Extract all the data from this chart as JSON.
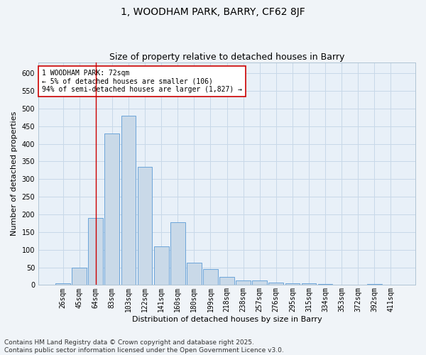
{
  "title": "1, WOODHAM PARK, BARRY, CF62 8JF",
  "subtitle": "Size of property relative to detached houses in Barry",
  "xlabel": "Distribution of detached houses by size in Barry",
  "ylabel": "Number of detached properties",
  "categories": [
    "26sqm",
    "45sqm",
    "64sqm",
    "83sqm",
    "103sqm",
    "122sqm",
    "141sqm",
    "160sqm",
    "180sqm",
    "199sqm",
    "218sqm",
    "238sqm",
    "257sqm",
    "276sqm",
    "295sqm",
    "315sqm",
    "334sqm",
    "353sqm",
    "372sqm",
    "392sqm",
    "411sqm"
  ],
  "values": [
    5,
    50,
    190,
    430,
    480,
    335,
    110,
    178,
    63,
    45,
    22,
    12,
    12,
    6,
    5,
    4,
    2,
    1,
    1,
    2,
    1
  ],
  "bar_color": "#c9d9e8",
  "bar_edge_color": "#5b9bd5",
  "vline_x": 2,
  "vline_color": "#cc0000",
  "annotation_text": "1 WOODHAM PARK: 72sqm\n← 5% of detached houses are smaller (106)\n94% of semi-detached houses are larger (1,827) →",
  "annotation_box_color": "#ffffff",
  "annotation_box_edge": "#cc0000",
  "ylim": [
    0,
    630
  ],
  "yticks": [
    0,
    50,
    100,
    150,
    200,
    250,
    300,
    350,
    400,
    450,
    500,
    550,
    600
  ],
  "grid_color": "#c8d8e8",
  "fig_background": "#f0f4f8",
  "plot_background": "#e8f0f8",
  "footer_text": "Contains HM Land Registry data © Crown copyright and database right 2025.\nContains public sector information licensed under the Open Government Licence v3.0.",
  "title_fontsize": 10,
  "subtitle_fontsize": 9,
  "label_fontsize": 8,
  "tick_fontsize": 7,
  "annot_fontsize": 7,
  "footer_fontsize": 6.5
}
